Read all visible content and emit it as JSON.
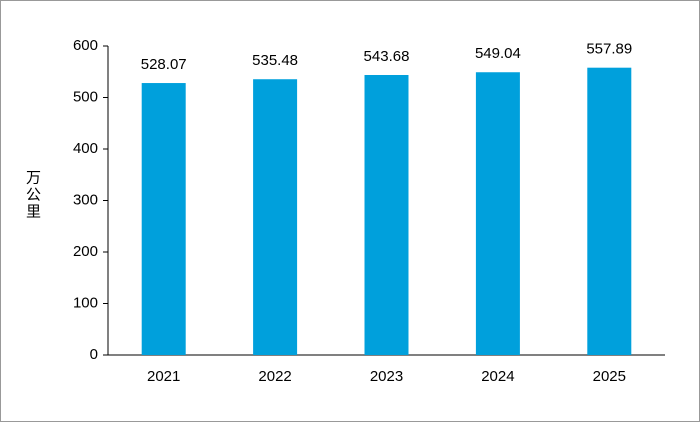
{
  "chart_data": {
    "type": "bar",
    "y_label": "万公里",
    "categories": [
      "2021",
      "2022",
      "2023",
      "2024",
      "2025"
    ],
    "values": [
      528.07,
      535.48,
      543.68,
      549.04,
      557.89
    ],
    "color": "#00a0dc",
    "ylim": [
      0,
      600
    ],
    "yticks": [
      0,
      100,
      200,
      300,
      400,
      500,
      600
    ],
    "grid": false
  }
}
